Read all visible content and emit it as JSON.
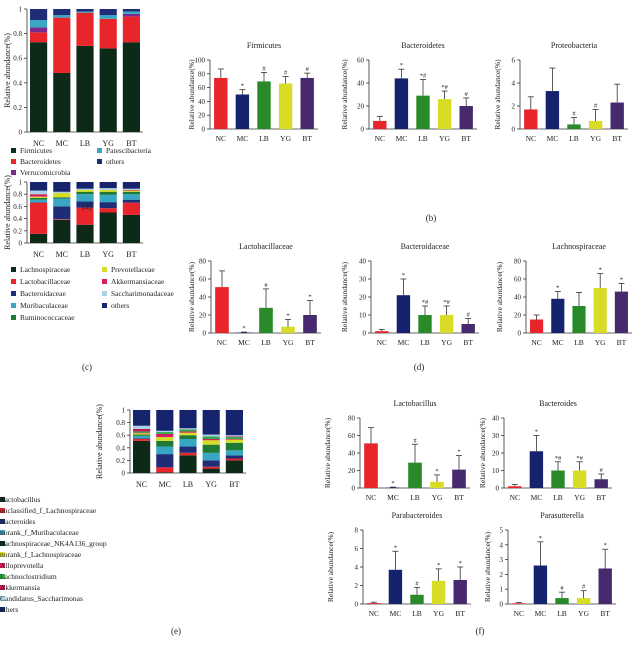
{
  "figure": {
    "panels": [
      "(a)",
      "(b)",
      "(c)",
      "(d)",
      "(e)",
      "(f)"
    ],
    "group_labels": [
      "NC",
      "MC",
      "LB",
      "YG",
      "BT"
    ],
    "bar_colors": [
      "#e8252b",
      "#15236f",
      "#2a8a2a",
      "#d9dc25",
      "#472a6e"
    ],
    "stack_labels": {
      "ylabel": "Relative abundance(%)"
    },
    "legend_a": [
      "Firmicutes",
      "Patescibacteria",
      "Bacteroidetes",
      "others",
      "Verrucomicrobia"
    ],
    "legend_c": [
      "Lachnospiraceae",
      "Prevotellaceae",
      "Lactobacillaceae",
      "Akkermansiaceae",
      "Bacteroidaceae",
      "Saccharimonadaceae",
      "Muribaculaceae",
      "others",
      "Ruminococcaceae"
    ],
    "legend_e": [
      "Lactobacillus",
      "unclassified_f_Lachnospiraceae",
      "Bacteroides",
      "norank_f_Muribaculaceae",
      "Lachnospiraceae_NK4A136_group",
      "norank_f_Lachnospiraceae",
      "Alloprevotella",
      "Lachnoclostridium",
      "Akkermansia",
      "Candidatus_Saccharimonas",
      "others"
    ]
  },
  "chart_data": [
    {
      "id": "a",
      "type": "bar",
      "stacked": true,
      "title": "",
      "xlabel": "",
      "ylabel": "Relative abundance(%)",
      "ylim": [
        0,
        1
      ],
      "yticks": [
        0,
        0.2,
        0.4,
        0.6,
        0.8,
        1
      ],
      "categories": [
        "NC",
        "MC",
        "LB",
        "YG",
        "BT"
      ],
      "series": [
        {
          "name": "Firmicutes",
          "color": "#0c2a17",
          "values": [
            0.73,
            0.48,
            0.7,
            0.68,
            0.73
          ]
        },
        {
          "name": "Bacteroidetes",
          "color": "#e8252b",
          "values": [
            0.08,
            0.45,
            0.27,
            0.24,
            0.21
          ]
        },
        {
          "name": "Verrucomicrobia",
          "color": "#7a2a8c",
          "values": [
            0.04,
            0.0,
            0.0,
            0.0,
            0.02
          ]
        },
        {
          "name": "Patescibacteria",
          "color": "#38a7c4",
          "values": [
            0.06,
            0.02,
            0.01,
            0.03,
            0.02
          ]
        },
        {
          "name": "others",
          "color": "#1f2d78",
          "values": [
            0.09,
            0.05,
            0.02,
            0.05,
            0.02
          ]
        }
      ]
    },
    {
      "id": "b1",
      "type": "bar",
      "title": "Firmicutes",
      "ylabel": "Relative abundance(%)",
      "ylim": [
        0,
        100
      ],
      "yticks": [
        0,
        20,
        40,
        60,
        80,
        100
      ],
      "categories": [
        "NC",
        "MC",
        "LB",
        "YG",
        "BT"
      ],
      "values": [
        74,
        50,
        69,
        66,
        74
      ],
      "errors": [
        13,
        7,
        13,
        10,
        7
      ],
      "annotations": [
        "",
        "*",
        "#",
        "#",
        "#"
      ]
    },
    {
      "id": "b2",
      "type": "bar",
      "title": "Bacteroidetes",
      "ylabel": "Relative abundance(%)",
      "ylim": [
        0,
        60
      ],
      "yticks": [
        0,
        20,
        40,
        60
      ],
      "categories": [
        "NC",
        "MC",
        "LB",
        "YG",
        "BT"
      ],
      "values": [
        7,
        44,
        29,
        26,
        20
      ],
      "errors": [
        4,
        8,
        14,
        7,
        7
      ],
      "annotations": [
        "",
        "*",
        "*#",
        "*#",
        "#"
      ]
    },
    {
      "id": "b3",
      "type": "bar",
      "title": "Proteobacteria",
      "ylabel": "Relative abundance(%)",
      "ylim": [
        0,
        6
      ],
      "yticks": [
        0,
        2,
        4,
        6
      ],
      "categories": [
        "NC",
        "MC",
        "LB",
        "YG",
        "BT"
      ],
      "values": [
        1.7,
        3.3,
        0.4,
        0.7,
        2.3
      ],
      "errors": [
        1.1,
        2.0,
        0.6,
        1.0,
        1.6
      ],
      "annotations": [
        "",
        "",
        "#",
        "#",
        ""
      ]
    },
    {
      "id": "c",
      "type": "bar",
      "stacked": true,
      "title": "",
      "ylabel": "Relative abundance(%)",
      "ylim": [
        0,
        1
      ],
      "yticks": [
        0,
        0.2,
        0.4,
        0.6,
        0.8,
        1
      ],
      "categories": [
        "NC",
        "MC",
        "LB",
        "YG",
        "BT"
      ],
      "series": [
        {
          "name": "Lachnospiraceae",
          "color": "#0c2a17",
          "values": [
            0.15,
            0.38,
            0.3,
            0.5,
            0.46
          ]
        },
        {
          "name": "Lactobacillaceae",
          "color": "#e8252b",
          "values": [
            0.51,
            0.01,
            0.28,
            0.07,
            0.2
          ]
        },
        {
          "name": "Bacteroidaceae",
          "color": "#1f2d78",
          "values": [
            0.01,
            0.21,
            0.1,
            0.1,
            0.05
          ]
        },
        {
          "name": "Muribaculaceae",
          "color": "#38a7c4",
          "values": [
            0.04,
            0.13,
            0.12,
            0.12,
            0.09
          ]
        },
        {
          "name": "Ruminococcaceae",
          "color": "#1f7a34",
          "values": [
            0.03,
            0.02,
            0.04,
            0.05,
            0.04
          ]
        },
        {
          "name": "Prevotellaceae",
          "color": "#d9dc25",
          "values": [
            0.02,
            0.07,
            0.03,
            0.03,
            0.02
          ]
        },
        {
          "name": "Akkermansiaceae",
          "color": "#d61f63",
          "values": [
            0.04,
            0.0,
            0.0,
            0.0,
            0.01
          ]
        },
        {
          "name": "Saccharimonadaceae",
          "color": "#a9d2e6",
          "values": [
            0.06,
            0.02,
            0.02,
            0.03,
            0.02
          ]
        },
        {
          "name": "others",
          "color": "#16246d",
          "values": [
            0.14,
            0.16,
            0.11,
            0.1,
            0.11
          ]
        }
      ]
    },
    {
      "id": "d1",
      "type": "bar",
      "title": "Lactobacillaceae",
      "ylabel": "Relative abundance(%)",
      "ylim": [
        0,
        80
      ],
      "yticks": [
        0,
        20,
        40,
        60,
        80
      ],
      "categories": [
        "NC",
        "MC",
        "LB",
        "YG",
        "BT"
      ],
      "values": [
        51,
        0.5,
        28,
        7,
        20
      ],
      "errors": [
        18,
        0.5,
        21,
        8,
        16
      ],
      "annotations": [
        "",
        "*",
        "#",
        "*",
        "*"
      ]
    },
    {
      "id": "d2",
      "type": "bar",
      "title": "Bacteroidaceae",
      "ylabel": "Relative abundance(%)",
      "ylim": [
        0,
        40
      ],
      "yticks": [
        0,
        10,
        20,
        30,
        40
      ],
      "categories": [
        "NC",
        "MC",
        "LB",
        "YG",
        "BT"
      ],
      "values": [
        1,
        21,
        10,
        10,
        5
      ],
      "errors": [
        1,
        9,
        5,
        5,
        3
      ],
      "annotations": [
        "",
        "*",
        "*#",
        "*#",
        "#"
      ]
    },
    {
      "id": "d3",
      "type": "bar",
      "title": "Lachnospiraceae",
      "ylabel": "Relative abundance(%)",
      "ylim": [
        0,
        80
      ],
      "yticks": [
        0,
        20,
        40,
        60,
        80
      ],
      "categories": [
        "NC",
        "MC",
        "LB",
        "YG",
        "BT"
      ],
      "values": [
        15,
        38,
        30,
        50,
        46
      ],
      "errors": [
        5,
        8,
        15,
        16,
        9
      ],
      "annotations": [
        "",
        "*",
        "",
        "*",
        "*"
      ]
    },
    {
      "id": "e",
      "type": "bar",
      "stacked": true,
      "title": "",
      "ylabel": "Relative abundance(%)",
      "ylim": [
        0,
        1
      ],
      "yticks": [
        0,
        0.2,
        0.4,
        0.6,
        0.8,
        1
      ],
      "categories": [
        "NC",
        "MC",
        "LB",
        "YG",
        "BT"
      ],
      "series": [
        {
          "name": "Lactobacillus",
          "color": "#0c2a17",
          "values": [
            0.51,
            0.01,
            0.28,
            0.07,
            0.2
          ]
        },
        {
          "name": "unclassified_f_Lachnospiraceae",
          "color": "#e8252b",
          "values": [
            0.03,
            0.08,
            0.04,
            0.03,
            0.03
          ]
        },
        {
          "name": "Bacteroides",
          "color": "#1f2d78",
          "values": [
            0.01,
            0.21,
            0.1,
            0.1,
            0.05
          ]
        },
        {
          "name": "norank_f_Muribaculaceae",
          "color": "#38a7c4",
          "values": [
            0.04,
            0.12,
            0.12,
            0.12,
            0.08
          ]
        },
        {
          "name": "Lachnospiraceae_NK4A136_group",
          "color": "#1f7a34",
          "values": [
            0.02,
            0.09,
            0.06,
            0.13,
            0.12
          ]
        },
        {
          "name": "norank_f_Lachnospiraceae",
          "color": "#d9dc25",
          "values": [
            0.02,
            0.06,
            0.04,
            0.07,
            0.05
          ]
        },
        {
          "name": "Alloprevotella",
          "color": "#d61f63",
          "values": [
            0.01,
            0.05,
            0.02,
            0.02,
            0.01
          ]
        },
        {
          "name": "Lachnoclostridium",
          "color": "#2ea84a",
          "values": [
            0.02,
            0.03,
            0.03,
            0.04,
            0.03
          ]
        },
        {
          "name": "Akkermansia",
          "color": "#c2185b",
          "values": [
            0.04,
            0.0,
            0.0,
            0.0,
            0.01
          ]
        },
        {
          "name": "Candidatus_Saccharimonas",
          "color": "#a9d2e6",
          "values": [
            0.05,
            0.02,
            0.02,
            0.03,
            0.02
          ]
        },
        {
          "name": "others",
          "color": "#16246d",
          "values": [
            0.25,
            0.33,
            0.29,
            0.39,
            0.4
          ]
        }
      ]
    },
    {
      "id": "f1",
      "type": "bar",
      "title": "Lactobacillus",
      "ylabel": "Relative abundance(%)",
      "ylim": [
        0,
        80
      ],
      "yticks": [
        0,
        20,
        40,
        60,
        80
      ],
      "categories": [
        "NC",
        "MC",
        "LB",
        "YG",
        "BT"
      ],
      "values": [
        51,
        0.5,
        29,
        7,
        21
      ],
      "errors": [
        18,
        0.5,
        21,
        8,
        16
      ],
      "annotations": [
        "",
        "*",
        "#",
        "*",
        "*"
      ]
    },
    {
      "id": "f2",
      "type": "bar",
      "title": "Bacteroides",
      "ylabel": "Relative abundance(%)",
      "ylim": [
        0,
        40
      ],
      "yticks": [
        0,
        10,
        20,
        30,
        40
      ],
      "categories": [
        "NC",
        "MC",
        "LB",
        "YG",
        "BT"
      ],
      "values": [
        1,
        21,
        10,
        10,
        5
      ],
      "errors": [
        1,
        9,
        5,
        5,
        3
      ],
      "annotations": [
        "",
        "*",
        "*#",
        "*#",
        "#"
      ]
    },
    {
      "id": "f3",
      "type": "bar",
      "title": "Parabacteroides",
      "ylabel": "Relative abundance(%)",
      "ylim": [
        0,
        8
      ],
      "yticks": [
        0,
        2,
        4,
        6,
        8
      ],
      "categories": [
        "NC",
        "MC",
        "LB",
        "YG",
        "BT"
      ],
      "values": [
        0.1,
        3.7,
        1.0,
        2.5,
        2.6
      ],
      "errors": [
        0.1,
        2.0,
        0.8,
        1.3,
        1.4
      ],
      "annotations": [
        "",
        "*",
        "#",
        "*",
        "*"
      ]
    },
    {
      "id": "f4",
      "type": "bar",
      "title": "Parasutterella",
      "ylabel": "Relative abundance(%)",
      "ylim": [
        0,
        5
      ],
      "yticks": [
        0,
        1,
        2,
        3,
        4,
        5
      ],
      "categories": [
        "NC",
        "MC",
        "LB",
        "YG",
        "BT"
      ],
      "values": [
        0.05,
        2.6,
        0.4,
        0.4,
        2.4
      ],
      "errors": [
        0.05,
        1.6,
        0.4,
        0.5,
        1.3
      ],
      "annotations": [
        "",
        "*",
        "#",
        "#",
        "*"
      ]
    }
  ]
}
